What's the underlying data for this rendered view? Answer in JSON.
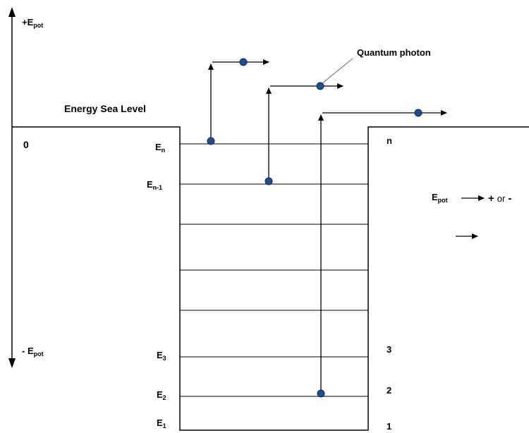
{
  "axis": {
    "top": {
      "main": "+E",
      "sub": "pot"
    },
    "bottom": {
      "main": "- E",
      "sub": "pot"
    }
  },
  "labels": {
    "sea_level": "Energy Sea Level",
    "zero": "0",
    "quantum_photon": "Quantum photon"
  },
  "levels": {
    "left": [
      {
        "main": "E",
        "sub": "n"
      },
      {
        "main": "E",
        "sub": "n-1"
      },
      {
        "main": "E",
        "sub": "3"
      },
      {
        "main": "E",
        "sub": "2"
      },
      {
        "main": "E",
        "sub": "1"
      }
    ],
    "right": [
      "n",
      "3",
      "2",
      "1"
    ]
  },
  "legend": {
    "main": "E",
    "sub": "pot",
    "plus": "+",
    "or": "or",
    "minus": "-"
  },
  "colors": {
    "line": "#000000",
    "electron": "#1f4e8c",
    "electron_stroke": "#0d2a52"
  }
}
